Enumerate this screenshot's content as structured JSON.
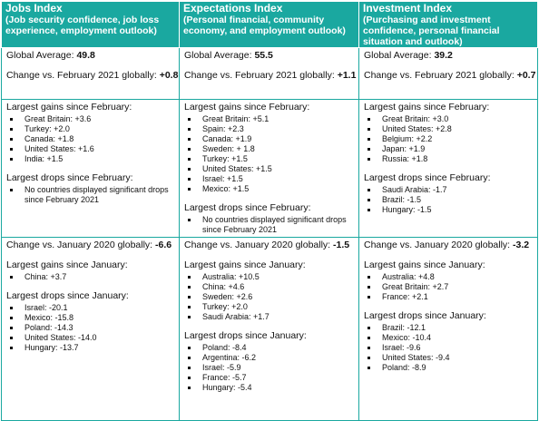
{
  "columns": [
    {
      "title": "Jobs Index",
      "subtitle": "(Job security confidence, job loss experience, employment outlook)",
      "global_avg_label": "Global Average:",
      "global_avg_value": "49.8",
      "feb_change_label": "Change vs. February 2021 globally:",
      "feb_change_value": "+0.8",
      "feb_gains_label": "Largest gains since February:",
      "feb_gains": [
        "Great Britain: +3.6",
        "Turkey: +2.0",
        "Canada: +1.8",
        "United States: +1.6",
        "India: +1.5"
      ],
      "feb_drops_label": "Largest drops since February:",
      "feb_drops": [
        "No countries displayed significant drops since February 2021"
      ],
      "jan_change_label": "Change vs. January 2020 globally:",
      "jan_change_value": "-6.6",
      "jan_gains_label": "Largest gains since January:",
      "jan_gains": [
        "China: +3.7"
      ],
      "jan_drops_label": "Largest drops since January:",
      "jan_drops": [
        "Israel: -20.1",
        "Mexico: -15.8",
        "Poland: -14.3",
        "United States: -14.0",
        "Hungary: -13.7"
      ]
    },
    {
      "title": "Expectations Index",
      "subtitle": "(Personal financial, community economy, and employment outlook)",
      "global_avg_label": "Global Average:",
      "global_avg_value": "55.5",
      "feb_change_label": "Change vs. February 2021 globally:",
      "feb_change_value": "+1.1",
      "feb_gains_label": "Largest gains since February:",
      "feb_gains": [
        "Great Britain: +5.1",
        "Spain: +2.3",
        "Canada: +1.9",
        "Sweden: + 1.8",
        "Turkey: +1.5",
        "United States: +1.5",
        "Israel: +1.5",
        "Mexico: +1.5"
      ],
      "feb_drops_label": "Largest drops since February:",
      "feb_drops": [
        "No countries displayed significant drops since February 2021"
      ],
      "jan_change_label": "Change vs. January 2020 globally:",
      "jan_change_value": "-1.5",
      "jan_gains_label": "Largest gains since January:",
      "jan_gains": [
        "Australia: +10.5",
        "China: +4.6",
        "Sweden: +2.6",
        "Turkey: +2.0",
        "Saudi Arabia: +1.7"
      ],
      "jan_drops_label": "Largest drops since January:",
      "jan_drops": [
        "Poland: -8.4",
        "Argentina: -6.2",
        "Israel: -5.9",
        "France: -5.7",
        "Hungary: -5.4"
      ]
    },
    {
      "title": "Investment Index",
      "subtitle": "(Purchasing and investment confidence, personal financial situation and outlook)",
      "global_avg_label": "Global Average:",
      "global_avg_value": "39.2",
      "feb_change_label": "Change vs. February 2021 globally:",
      "feb_change_value": "+0.7",
      "feb_gains_label": "Largest gains since February:",
      "feb_gains": [
        "Great Britain: +3.0",
        "United States: +2.8",
        "Belgium: +2.2",
        "Japan: +1.9",
        "Russia: +1.8"
      ],
      "feb_drops_label": "Largest drops since February:",
      "feb_drops": [
        "Saudi Arabia: -1.7",
        "Brazil: -1.5",
        "Hungary: -1.5"
      ],
      "jan_change_label": "Change vs. January 2020 globally:",
      "jan_change_value": "-3.2",
      "jan_gains_label": "Largest gains since January:",
      "jan_gains": [
        "Australia: +4.8",
        "Great Britain: +2.7",
        "France: +2.1"
      ],
      "jan_drops_label": "Largest drops since January:",
      "jan_drops": [
        "Brazil: -12.1",
        "Mexico: -10.4",
        "Israel: -9.6",
        "United States: -9.4",
        "Poland: -8.9"
      ]
    }
  ]
}
